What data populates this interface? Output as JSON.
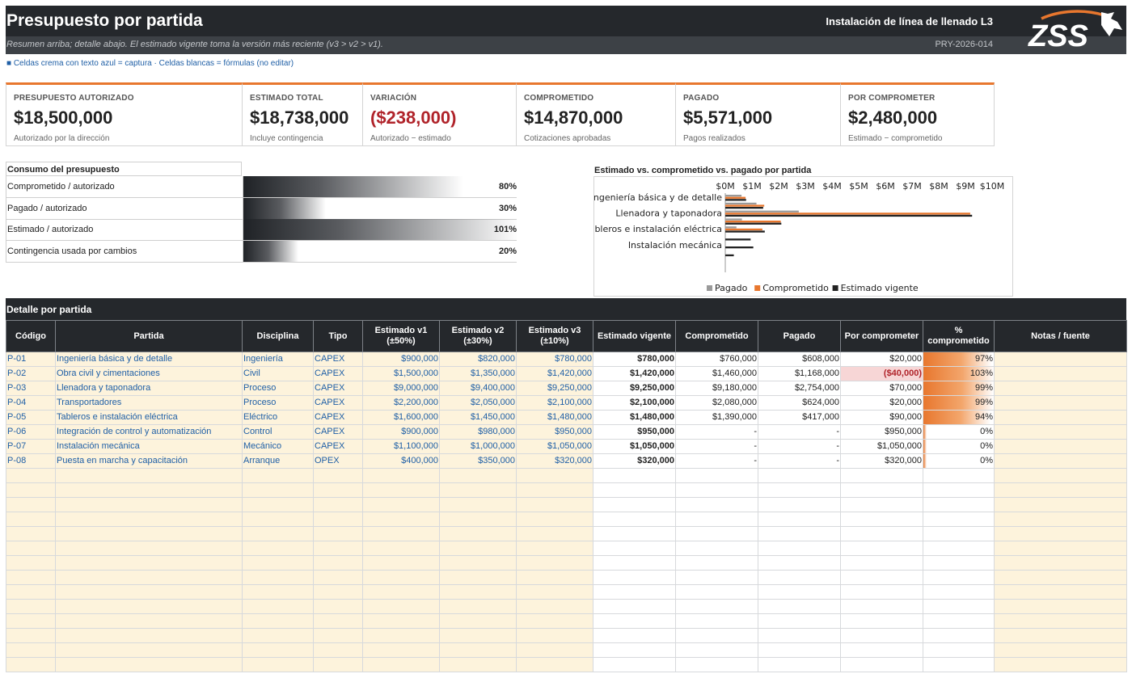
{
  "header": {
    "title": "Presupuesto por partida",
    "project": "Instalación de línea de llenado L3",
    "note": "Resumen arriba; detalle abajo. El estimado vigente toma la versión más reciente (v3 > v2 > v1).",
    "code": "PRY-2026-014",
    "logo_text": "ZSS",
    "legend": "■ Celdas crema con texto azul = captura   ·   Celdas blancas = fórmulas (no editar)"
  },
  "kpis": [
    {
      "label": "Presupuesto autorizado",
      "value": "$18,500,000",
      "note": "Autorizado por la dirección",
      "negative": false
    },
    {
      "label": "Estimado total",
      "value": "$18,738,000",
      "note": "Incluye contingencia",
      "negative": false
    },
    {
      "label": "Variación",
      "value": "($238,000)",
      "note": "Autorizado − estimado",
      "negative": true
    },
    {
      "label": "Comprometido",
      "value": "$14,870,000",
      "note": "Cotizaciones aprobadas",
      "negative": false
    },
    {
      "label": "Pagado",
      "value": "$5,571,000",
      "note": "Pagos realizados",
      "negative": false
    },
    {
      "label": "Por comprometer",
      "value": "$2,480,000",
      "note": "Estimado − comprometido",
      "negative": false
    }
  ],
  "consumption": {
    "title": "Consumo del presupuesto",
    "rows": [
      {
        "label": "Comprometido / autorizado",
        "pct_label": "80%",
        "fraction": 0.8
      },
      {
        "label": "Pagado / autorizado",
        "pct_label": "30%",
        "fraction": 0.3
      },
      {
        "label": "Estimado / autorizado",
        "pct_label": "101%",
        "fraction": 1.0
      },
      {
        "label": "Contingencia usada por cambios",
        "pct_label": "20%",
        "fraction": 0.2
      }
    ]
  },
  "chart_data": {
    "type": "bar",
    "orientation": "horizontal",
    "title": "Estimado vs. comprometido vs. pagado por partida",
    "categories": [
      "P-01",
      "P-02",
      "P-03",
      "P-04",
      "P-05",
      "P-06",
      "P-07",
      "P-08"
    ],
    "category_labels": [
      "Ingeniería básica y de detalle",
      "Llenadora y taponadora",
      "Tableros e instalación eléctrica",
      "Instalación mecánica"
    ],
    "labeled_category_index": [
      0,
      2,
      4,
      6
    ],
    "series": [
      {
        "name": "Pagado",
        "color": "#9a9a9a",
        "values": [
          608000,
          1168000,
          2754000,
          624000,
          417000,
          0,
          0,
          0
        ]
      },
      {
        "name": "Comprometido",
        "color": "#e8772e",
        "values": [
          760000,
          1460000,
          9180000,
          2080000,
          1390000,
          0,
          0,
          0
        ]
      },
      {
        "name": "Estimado vigente",
        "color": "#222222",
        "values": [
          780000,
          1420000,
          9250000,
          2100000,
          1480000,
          950000,
          1050000,
          320000
        ]
      }
    ],
    "xlim": [
      0,
      10000000
    ],
    "xticks": [
      "$0M",
      "$1M",
      "$2M",
      "$3M",
      "$4M",
      "$5M",
      "$6M",
      "$7M",
      "$8M",
      "$9M",
      "$10M"
    ],
    "legend_position": "bottom",
    "grid": false
  },
  "detail": {
    "title": "Detalle por partida",
    "columns": [
      "Código",
      "Partida",
      "Disciplina",
      "Tipo",
      "Estimado v1\n(±50%)",
      "Estimado v2\n(±30%)",
      "Estimado v3\n(±10%)",
      "Estimado vigente",
      "Comprometido",
      "Pagado",
      "Por comprometer",
      "%\ncomprometido",
      "Notas / fuente"
    ],
    "rows": [
      {
        "code": "P-01",
        "name": "Ingeniería básica y de detalle",
        "disc": "Ingeniería",
        "type": "CAPEX",
        "v1": "$900,000",
        "v2": "$820,000",
        "v3": "$780,000",
        "vig": "$780,000",
        "com": "$760,000",
        "pag": "$608,000",
        "por": "$20,000",
        "por_neg": false,
        "pct": "97%",
        "pct_frac": 0.97
      },
      {
        "code": "P-02",
        "name": "Obra civil y cimentaciones",
        "disc": "Civil",
        "type": "CAPEX",
        "v1": "$1,500,000",
        "v2": "$1,350,000",
        "v3": "$1,420,000",
        "vig": "$1,420,000",
        "com": "$1,460,000",
        "pag": "$1,168,000",
        "por": "($40,000)",
        "por_neg": true,
        "pct": "103%",
        "pct_frac": 1.0
      },
      {
        "code": "P-03",
        "name": "Llenadora y taponadora",
        "disc": "Proceso",
        "type": "CAPEX",
        "v1": "$9,000,000",
        "v2": "$9,400,000",
        "v3": "$9,250,000",
        "vig": "$9,250,000",
        "com": "$9,180,000",
        "pag": "$2,754,000",
        "por": "$70,000",
        "por_neg": false,
        "pct": "99%",
        "pct_frac": 0.99
      },
      {
        "code": "P-04",
        "name": "Transportadores",
        "disc": "Proceso",
        "type": "CAPEX",
        "v1": "$2,200,000",
        "v2": "$2,050,000",
        "v3": "$2,100,000",
        "vig": "$2,100,000",
        "com": "$2,080,000",
        "pag": "$624,000",
        "por": "$20,000",
        "por_neg": false,
        "pct": "99%",
        "pct_frac": 0.99
      },
      {
        "code": "P-05",
        "name": "Tableros e instalación eléctrica",
        "disc": "Eléctrico",
        "type": "CAPEX",
        "v1": "$1,600,000",
        "v2": "$1,450,000",
        "v3": "$1,480,000",
        "vig": "$1,480,000",
        "com": "$1,390,000",
        "pag": "$417,000",
        "por": "$90,000",
        "por_neg": false,
        "pct": "94%",
        "pct_frac": 0.94
      },
      {
        "code": "P-06",
        "name": "Integración de control y automatización",
        "disc": "Control",
        "type": "CAPEX",
        "v1": "$900,000",
        "v2": "$980,000",
        "v3": "$950,000",
        "vig": "$950,000",
        "com": "-",
        "pag": "-",
        "por": "$950,000",
        "por_neg": false,
        "pct": "0%",
        "pct_frac": 0.0
      },
      {
        "code": "P-07",
        "name": "Instalación mecánica",
        "disc": "Mecánico",
        "type": "CAPEX",
        "v1": "$1,100,000",
        "v2": "$1,000,000",
        "v3": "$1,050,000",
        "vig": "$1,050,000",
        "com": "-",
        "pag": "-",
        "por": "$1,050,000",
        "por_neg": false,
        "pct": "0%",
        "pct_frac": 0.0
      },
      {
        "code": "P-08",
        "name": "Puesta en marcha y capacitación",
        "disc": "Arranque",
        "type": "OPEX",
        "v1": "$400,000",
        "v2": "$350,000",
        "v3": "$320,000",
        "vig": "$320,000",
        "com": "-",
        "pag": "-",
        "por": "$320,000",
        "por_neg": false,
        "pct": "0%",
        "pct_frac": 0.0
      }
    ]
  }
}
